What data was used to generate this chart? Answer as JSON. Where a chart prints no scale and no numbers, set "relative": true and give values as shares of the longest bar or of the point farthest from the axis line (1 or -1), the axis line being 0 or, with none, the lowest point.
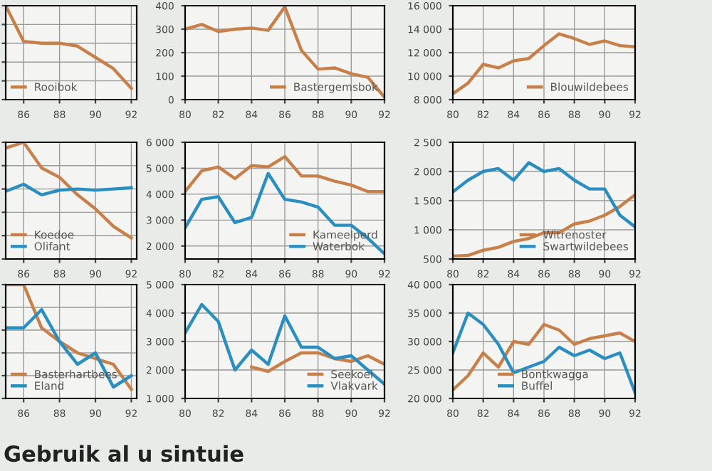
{
  "chart_data": [
    {
      "type": "line",
      "relative": true,
      "x": [
        85,
        86,
        87,
        88,
        89,
        90,
        91,
        92
      ],
      "xlim": [
        85,
        92.3
      ],
      "xticks": [
        86,
        88,
        90,
        92
      ],
      "tick_labels": "x",
      "grid": true,
      "legend": "bottom left",
      "series": [
        {
          "name": "Rooibok",
          "color": "#c8804a",
          "values": [
            1.0,
            0.62,
            0.6,
            0.6,
            0.57,
            0.45,
            0.33,
            0.12
          ]
        }
      ]
    },
    {
      "type": "line",
      "x": [
        80,
        81,
        82,
        83,
        84,
        85,
        86,
        87,
        88,
        89,
        90,
        91,
        92
      ],
      "xlim": [
        80,
        92
      ],
      "xticks": [
        80,
        82,
        84,
        86,
        88,
        90,
        92
      ],
      "ylim": [
        0,
        400
      ],
      "yticks": [
        0,
        100,
        200,
        300,
        400
      ],
      "grid": true,
      "legend": "bottom right",
      "series": [
        {
          "name": "Bastergemsbok",
          "color": "#c8804a",
          "values": [
            300,
            320,
            290,
            300,
            305,
            295,
            395,
            210,
            130,
            135,
            110,
            95,
            10
          ]
        }
      ]
    },
    {
      "type": "line",
      "x": [
        80,
        81,
        82,
        83,
        84,
        85,
        86,
        87,
        88,
        89,
        90,
        91,
        92
      ],
      "xlim": [
        80,
        92
      ],
      "xticks": [
        80,
        82,
        84,
        86,
        88,
        90,
        92
      ],
      "ylim": [
        8000,
        16000
      ],
      "yticks": [
        {
          "value": 8000,
          "label": "8 000"
        },
        {
          "value": 10000,
          "label": "10 000"
        },
        {
          "value": 12000,
          "label": "12 000"
        },
        {
          "value": 14000,
          "label": "14 000"
        },
        {
          "value": 16000,
          "label": "16 000"
        }
      ],
      "grid": true,
      "legend": "bottom right",
      "series": [
        {
          "name": "Blouwildebees",
          "color": "#c8804a",
          "values": [
            8500,
            9400,
            11000,
            10700,
            11300,
            11500,
            12600,
            13600,
            13200,
            12700,
            13000,
            12600,
            12500
          ]
        }
      ]
    },
    {
      "type": "line",
      "relative": true,
      "x": [
        85,
        86,
        87,
        88,
        89,
        90,
        91,
        92
      ],
      "xlim": [
        85,
        92.3
      ],
      "xticks": [
        86,
        88,
        90,
        92
      ],
      "tick_labels": "x",
      "grid": true,
      "legend": "bottom left",
      "series": [
        {
          "name": "Koedoe",
          "color": "#c8804a",
          "values": [
            0.95,
            1.0,
            0.78,
            0.7,
            0.55,
            0.43,
            0.28,
            0.18
          ]
        },
        {
          "name": "Olifant",
          "color": "#2a8fc0",
          "values": [
            0.58,
            0.64,
            0.55,
            0.59,
            0.6,
            0.59,
            0.6,
            0.61
          ]
        }
      ]
    },
    {
      "type": "line",
      "x": [
        80,
        81,
        82,
        83,
        84,
        85,
        86,
        87,
        88,
        89,
        90,
        91,
        92
      ],
      "xlim": [
        80,
        92
      ],
      "xticks": [
        80,
        82,
        84,
        86,
        88,
        90,
        92
      ],
      "ylim": [
        1500,
        6000
      ],
      "yticks": [
        {
          "value": 2000,
          "label": "2 000"
        },
        {
          "value": 3000,
          "label": "3 000"
        },
        {
          "value": 4000,
          "label": "4 000"
        },
        {
          "value": 5000,
          "label": "5 000"
        },
        {
          "value": 6000,
          "label": "6 000"
        }
      ],
      "grid": true,
      "legend": "bottom right",
      "series": [
        {
          "name": "Kameelperd",
          "color": "#c8804a",
          "values": [
            4100,
            4900,
            5050,
            4600,
            5100,
            5050,
            5450,
            4700,
            4700,
            4500,
            4350,
            4100,
            4100
          ]
        },
        {
          "name": "Waterbok",
          "color": "#2a8fc0",
          "values": [
            2700,
            3800,
            3900,
            2900,
            3100,
            4800,
            3800,
            3700,
            3500,
            2800,
            2800,
            2300,
            1700
          ]
        }
      ]
    },
    {
      "type": "line",
      "x": [
        80,
        81,
        82,
        83,
        84,
        85,
        86,
        87,
        88,
        89,
        90,
        91,
        92
      ],
      "xlim": [
        80,
        92
      ],
      "xticks": [
        80,
        82,
        84,
        86,
        88,
        90,
        92
      ],
      "ylim": [
        500,
        2500
      ],
      "yticks": [
        500,
        {
          "value": 1000,
          "label": "1 000"
        },
        {
          "value": 1500,
          "label": "1 500"
        },
        {
          "value": 2000,
          "label": "2 000"
        },
        {
          "value": 2500,
          "label": "2 500"
        }
      ],
      "grid": true,
      "legend": "bottom right",
      "series": [
        {
          "name": "Witrenoster",
          "color": "#c8804a",
          "values": [
            550,
            560,
            650,
            700,
            800,
            850,
            950,
            950,
            1100,
            1150,
            1250,
            1400,
            1600
          ]
        },
        {
          "name": "Swartwildebees",
          "color": "#2a8fc0",
          "values": [
            1650,
            1850,
            2000,
            2050,
            1850,
            2150,
            2000,
            2050,
            1850,
            1700,
            1700,
            1250,
            1050
          ]
        }
      ]
    },
    {
      "type": "line",
      "relative": true,
      "x": [
        85,
        86,
        87,
        88,
        89,
        90,
        91,
        92
      ],
      "xlim": [
        85,
        92.3
      ],
      "xticks": [
        86,
        88,
        90,
        92
      ],
      "tick_labels": "x",
      "grid": true,
      "legend": "bottom left",
      "series": [
        {
          "name": "Basterhartbees",
          "color": "#c8804a",
          "values": [
            1.0,
            1.0,
            0.62,
            0.5,
            0.4,
            0.35,
            0.3,
            0.08
          ]
        },
        {
          "name": "Eland",
          "color": "#2a8fc0",
          "values": [
            0.62,
            0.62,
            0.78,
            0.5,
            0.3,
            0.4,
            0.1,
            0.2
          ]
        }
      ]
    },
    {
      "type": "line",
      "x": [
        80,
        81,
        82,
        83,
        84,
        85,
        86,
        87,
        88,
        89,
        90,
        91,
        92
      ],
      "xlim": [
        80,
        92
      ],
      "xticks": [
        80,
        82,
        84,
        86,
        88,
        90,
        92
      ],
      "ylim": [
        1000,
        5000
      ],
      "yticks": [
        {
          "value": 1000,
          "label": "1 000"
        },
        {
          "value": 2000,
          "label": "2 000"
        },
        {
          "value": 3000,
          "label": "3 000"
        },
        {
          "value": 4000,
          "label": "4 000"
        },
        {
          "value": 5000,
          "label": "5 000"
        }
      ],
      "grid": true,
      "legend": "bottom right",
      "series": [
        {
          "name": "Seekoei",
          "color": "#c8804a",
          "values": [
            null,
            null,
            null,
            null,
            2100,
            1950,
            2300,
            2600,
            2600,
            2400,
            2300,
            2500,
            2200
          ]
        },
        {
          "name": "Vlakvark",
          "color": "#2a8fc0",
          "values": [
            3300,
            4300,
            3700,
            2000,
            2700,
            2200,
            3900,
            2800,
            2800,
            2400,
            2500,
            2000,
            1500
          ]
        }
      ]
    },
    {
      "type": "line",
      "x": [
        80,
        81,
        82,
        83,
        84,
        85,
        86,
        87,
        88,
        89,
        90,
        91,
        92
      ],
      "xlim": [
        80,
        92
      ],
      "xticks": [
        80,
        82,
        84,
        86,
        88,
        90,
        92
      ],
      "ylim": [
        20000,
        40000
      ],
      "yticks": [
        {
          "value": 20000,
          "label": "20 000"
        },
        {
          "value": 25000,
          "label": "25 000"
        },
        {
          "value": 30000,
          "label": "30 000"
        },
        {
          "value": 35000,
          "label": "35 000"
        },
        {
          "value": 40000,
          "label": "40 000"
        }
      ],
      "grid": true,
      "legend": "bottom",
      "annotations": [
        "Gebruik al u sintuie"
      ],
      "series": [
        {
          "name": "Bontkwagga",
          "color": "#c8804a",
          "values": [
            21500,
            24000,
            28000,
            25500,
            30000,
            29500,
            33000,
            32000,
            29500,
            30500,
            31000,
            31500,
            30000
          ]
        },
        {
          "name": "Buffel",
          "color": "#2a8fc0",
          "values": [
            28000,
            35000,
            33000,
            29500,
            24500,
            25500,
            26500,
            29000,
            27500,
            28500,
            27000,
            28000,
            21000
          ]
        }
      ]
    }
  ]
}
